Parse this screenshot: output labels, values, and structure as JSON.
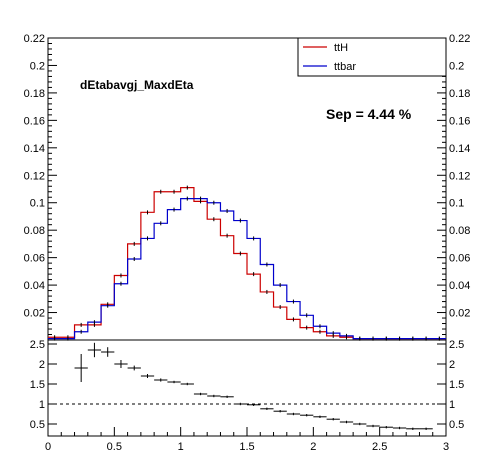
{
  "colors": {
    "tth": "#cc0000",
    "ttbar": "#0000cc",
    "axis": "#000000",
    "background": "#ffffff"
  },
  "chart_data": [
    {
      "type": "line",
      "drawstyle": "step-histogram",
      "variable_label": "dEtabavgj_MaxdEta",
      "annotation": "Sep = 4.44 %",
      "x_range": [
        0,
        3
      ],
      "ylim": [
        0,
        0.22
      ],
      "y_ticks": [
        "0.02",
        "0.04",
        "0.06",
        "0.08",
        "0.1",
        "0.12",
        "0.14",
        "0.16",
        "0.18",
        "0.2",
        "0.22"
      ],
      "bin_edges": [
        0,
        0.1,
        0.2,
        0.3,
        0.4,
        0.5,
        0.6,
        0.7,
        0.8,
        0.9,
        1.0,
        1.1,
        1.2,
        1.3,
        1.4,
        1.5,
        1.6,
        1.7,
        1.8,
        1.9,
        2.0,
        2.1,
        2.2,
        2.3,
        2.4,
        2.5,
        2.6,
        2.7,
        2.8,
        2.9,
        3.0
      ],
      "legend": {
        "position": "top-right",
        "entries": [
          "ttH",
          "ttbar"
        ]
      },
      "series": [
        {
          "name": "ttH",
          "color_key": "tth",
          "values": [
            0.002,
            0.002,
            0.011,
            0.011,
            0.026,
            0.047,
            0.07,
            0.093,
            0.108,
            0.108,
            0.111,
            0.101,
            0.088,
            0.076,
            0.063,
            0.048,
            0.035,
            0.024,
            0.015,
            0.009,
            0.006,
            0.003,
            0.002,
            0.001,
            0.001,
            0.001,
            0.001,
            0.001,
            0.001,
            0.001
          ]
        },
        {
          "name": "ttbar",
          "color_key": "ttbar",
          "values": [
            0.001,
            0.001,
            0.006,
            0.013,
            0.025,
            0.041,
            0.059,
            0.074,
            0.085,
            0.095,
            0.103,
            0.103,
            0.1,
            0.094,
            0.087,
            0.074,
            0.055,
            0.04,
            0.028,
            0.018,
            0.01,
            0.005,
            0.003,
            0.001,
            0.001,
            0.001,
            0.001,
            0.001,
            0.001,
            0.001
          ]
        }
      ]
    },
    {
      "type": "scatter",
      "drawstyle": "points-with-errorbars",
      "x_range": [
        0,
        3
      ],
      "ylim": [
        0.2,
        2.6
      ],
      "y_ticks": [
        "0.5",
        "1",
        "1.5",
        "2",
        "2.5"
      ],
      "x_ticks": [
        "0",
        "0.5",
        "1",
        "1.5",
        "2",
        "2.5",
        "3"
      ],
      "x_tick_values": [
        0,
        0.5,
        1,
        1.5,
        2,
        2.5,
        3
      ],
      "reference_line": 1,
      "x_half_width": 0.05,
      "series": [
        {
          "name": "",
          "x": [
            0.25,
            0.35,
            0.45,
            0.55,
            0.65,
            0.75,
            0.85,
            0.95,
            1.05,
            1.15,
            1.25,
            1.35,
            1.45,
            1.55,
            1.65,
            1.75,
            1.85,
            1.95,
            2.05,
            2.15,
            2.25,
            2.35,
            2.45,
            2.55,
            2.65,
            2.75,
            2.85
          ],
          "y": [
            1.9,
            2.35,
            2.3,
            2.0,
            1.9,
            1.7,
            1.6,
            1.55,
            1.5,
            1.25,
            1.2,
            1.18,
            1.0,
            0.98,
            0.88,
            0.82,
            0.75,
            0.72,
            0.68,
            0.62,
            0.55,
            0.5,
            0.45,
            0.42,
            0.4,
            0.38,
            0.38
          ],
          "yerr": [
            0.35,
            0.18,
            0.12,
            0.1,
            0.06,
            0.05,
            0.04,
            0.03,
            0.03,
            0.03,
            0.03,
            0.03,
            0.03,
            0.03,
            0.03,
            0.03,
            0.03,
            0.03,
            0.03,
            0.03,
            0.03,
            0.03,
            0.03,
            0.03,
            0.03,
            0.03,
            0.03
          ]
        }
      ]
    }
  ]
}
